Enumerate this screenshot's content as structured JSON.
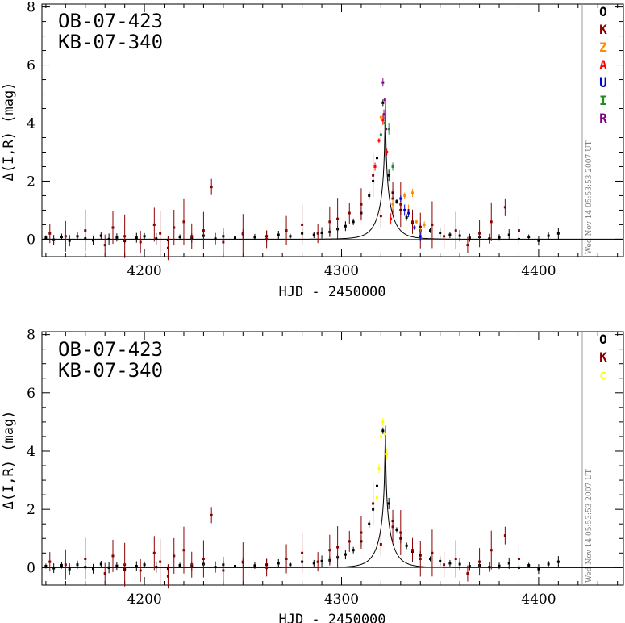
{
  "chart_data": [
    {
      "type": "scatter",
      "title": [
        "OB-07-423",
        "KB-07-340"
      ],
      "xlabel": "HJD - 2450000",
      "ylabel": "Δ(I,R) (mag)",
      "xlim": [
        4148,
        4443
      ],
      "ylim": [
        -0.6,
        8.1
      ],
      "xticks": [
        4200,
        4300,
        4400
      ],
      "yticks": [
        0,
        2,
        4,
        6,
        8
      ],
      "timestamp": "Wed Nov 14 05:53:53 2007 UT",
      "legend": [
        {
          "label": "O",
          "color": "#000000"
        },
        {
          "label": "K",
          "color": "#8b0000"
        },
        {
          "label": "Z",
          "color": "#ff8c00"
        },
        {
          "label": "A",
          "color": "#ff0000"
        },
        {
          "label": "U",
          "color": "#0000cd"
        },
        {
          "label": "I",
          "color": "#228b22"
        },
        {
          "label": "R",
          "color": "#800080"
        }
      ],
      "model": {
        "t0": 4322.2,
        "tau": 7.5,
        "u0": 0.009,
        "baseline": 0,
        "tmax": 4443
      },
      "series": [
        {
          "name": "O",
          "color": "#000000",
          "points": [
            [
              4150,
              0.05
            ],
            [
              4154,
              -0.02
            ],
            [
              4158,
              0.08
            ],
            [
              4162,
              -0.05
            ],
            [
              4166,
              0.1
            ],
            [
              4170,
              0.02
            ],
            [
              4174,
              -0.04
            ],
            [
              4178,
              0.12
            ],
            [
              4182,
              0.0
            ],
            [
              4186,
              0.06
            ],
            [
              4190,
              -0.06
            ],
            [
              4196,
              0.05
            ],
            [
              4200,
              0.1
            ],
            [
              4206,
              0.02
            ],
            [
              4212,
              -0.03
            ],
            [
              4218,
              0.08
            ],
            [
              4224,
              0.04
            ],
            [
              4230,
              0.12
            ],
            [
              4236,
              0.02
            ],
            [
              4240,
              0.1
            ],
            [
              4246,
              0.05
            ],
            [
              4250,
              0.18
            ],
            [
              4256,
              0.07
            ],
            [
              4262,
              0.1
            ],
            [
              4268,
              0.15
            ],
            [
              4274,
              0.1
            ],
            [
              4280,
              0.2
            ],
            [
              4286,
              0.15
            ],
            [
              4290,
              0.22
            ],
            [
              4294,
              0.25
            ],
            [
              4298,
              0.35
            ],
            [
              4302,
              0.45
            ],
            [
              4306,
              0.6
            ],
            [
              4310,
              0.9
            ],
            [
              4314,
              1.5
            ],
            [
              4316,
              2.0
            ],
            [
              4318,
              2.8
            ],
            [
              4321,
              4.7
            ],
            [
              4324,
              2.2
            ],
            [
              4326,
              1.6
            ],
            [
              4328,
              1.3
            ],
            [
              4330,
              1.0
            ],
            [
              4333,
              0.75
            ],
            [
              4336,
              0.55
            ],
            [
              4340,
              0.42
            ],
            [
              4345,
              0.3
            ],
            [
              4350,
              0.22
            ],
            [
              4355,
              0.15
            ],
            [
              4360,
              0.12
            ],
            [
              4365,
              0.05
            ],
            [
              4370,
              0.08
            ],
            [
              4375,
              0.02
            ],
            [
              4380,
              0.06
            ],
            [
              4385,
              0.15
            ],
            [
              4390,
              0.0
            ],
            [
              4395,
              0.08
            ],
            [
              4400,
              -0.05
            ],
            [
              4405,
              0.12
            ],
            [
              4410,
              0.2
            ]
          ]
        },
        {
          "name": "K",
          "color": "#8b0000",
          "points": [
            [
              4152,
              0.2
            ],
            [
              4160,
              0.1
            ],
            [
              4170,
              0.3
            ],
            [
              4180,
              -0.2
            ],
            [
              4184,
              0.4
            ],
            [
              4190,
              0.1
            ],
            [
              4198,
              -0.1
            ],
            [
              4205,
              0.5
            ],
            [
              4208,
              0.2
            ],
            [
              4212,
              -0.3
            ],
            [
              4215,
              0.4
            ],
            [
              4220,
              0.6
            ],
            [
              4224,
              0.1
            ],
            [
              4230,
              0.3
            ],
            [
              4234,
              1.8
            ],
            [
              4240,
              -0.1
            ],
            [
              4250,
              0.2
            ],
            [
              4262,
              0.0
            ],
            [
              4272,
              0.3
            ],
            [
              4280,
              0.5
            ],
            [
              4288,
              0.2
            ],
            [
              4294,
              0.6
            ],
            [
              4298,
              0.7
            ],
            [
              4304,
              0.9
            ],
            [
              4310,
              1.2
            ],
            [
              4316,
              2.2
            ],
            [
              4320,
              0.8
            ],
            [
              4326,
              1.4
            ],
            [
              4330,
              1.2
            ],
            [
              4336,
              0.6
            ],
            [
              4340,
              0.3
            ],
            [
              4346,
              0.5
            ],
            [
              4352,
              0.1
            ],
            [
              4358,
              0.3
            ],
            [
              4364,
              -0.2
            ],
            [
              4370,
              0.2
            ],
            [
              4376,
              0.6
            ],
            [
              4383,
              1.1
            ],
            [
              4390,
              0.3
            ]
          ]
        },
        {
          "name": "Z",
          "color": "#ff8c00",
          "points": [
            [
              4320,
              4.2
            ],
            [
              4326,
              1.2
            ],
            [
              4332,
              1.5
            ],
            [
              4334,
              1.0
            ],
            [
              4336,
              1.6
            ],
            [
              4338,
              0.6
            ],
            [
              4340,
              0.2
            ],
            [
              4342,
              0.5
            ]
          ]
        },
        {
          "name": "A",
          "color": "#ff0000",
          "points": [
            [
              4317,
              2.5
            ],
            [
              4319,
              3.4
            ],
            [
              4321,
              4.1
            ],
            [
              4323,
              3.0
            ],
            [
              4325,
              0.7
            ]
          ]
        },
        {
          "name": "U",
          "color": "#0000cd",
          "points": [
            [
              4330,
              1.4
            ],
            [
              4332,
              1.0
            ],
            [
              4334,
              0.9
            ],
            [
              4337,
              0.4
            ],
            [
              4340,
              0.1
            ]
          ]
        },
        {
          "name": "I",
          "color": "#228b22",
          "points": [
            [
              4320,
              3.6
            ],
            [
              4322,
              4.0
            ],
            [
              4324,
              3.8
            ],
            [
              4326,
              2.5
            ]
          ]
        },
        {
          "name": "R",
          "color": "#800080",
          "points": [
            [
              4321,
              5.4
            ],
            [
              4322,
              4.8
            ],
            [
              4321.5,
              4.3
            ],
            [
              4322.5,
              3.8
            ]
          ]
        }
      ]
    },
    {
      "type": "scatter",
      "title": [
        "OB-07-423",
        "KB-07-340"
      ],
      "xlabel": "HJD - 2450000",
      "ylabel": "Δ(I,R) (mag)",
      "xlim": [
        4148,
        4443
      ],
      "ylim": [
        -0.6,
        8.1
      ],
      "xticks": [
        4200,
        4300,
        4400
      ],
      "yticks": [
        0,
        2,
        4,
        6,
        8
      ],
      "timestamp": "Wed Nov 14 05:53:53 2007 UT",
      "legend": [
        {
          "label": "O",
          "color": "#000000"
        },
        {
          "label": "K",
          "color": "#8b0000"
        },
        {
          "label": "c",
          "color": "#ffff00"
        }
      ],
      "model": {
        "t0": 4322.2,
        "tau": 7.5,
        "u0": 0.009,
        "baseline": 0,
        "tmax": 4443
      },
      "series": [
        {
          "name": "O",
          "color": "#000000",
          "points": [
            [
              4150,
              0.05
            ],
            [
              4154,
              -0.02
            ],
            [
              4158,
              0.08
            ],
            [
              4162,
              -0.05
            ],
            [
              4166,
              0.1
            ],
            [
              4170,
              0.02
            ],
            [
              4174,
              -0.04
            ],
            [
              4178,
              0.12
            ],
            [
              4182,
              0.0
            ],
            [
              4186,
              0.06
            ],
            [
              4190,
              -0.06
            ],
            [
              4196,
              0.05
            ],
            [
              4200,
              0.1
            ],
            [
              4206,
              0.02
            ],
            [
              4212,
              -0.03
            ],
            [
              4218,
              0.08
            ],
            [
              4224,
              0.04
            ],
            [
              4230,
              0.12
            ],
            [
              4236,
              0.02
            ],
            [
              4240,
              0.1
            ],
            [
              4246,
              0.05
            ],
            [
              4250,
              0.18
            ],
            [
              4256,
              0.07
            ],
            [
              4262,
              0.1
            ],
            [
              4268,
              0.15
            ],
            [
              4274,
              0.1
            ],
            [
              4280,
              0.2
            ],
            [
              4286,
              0.15
            ],
            [
              4290,
              0.22
            ],
            [
              4294,
              0.25
            ],
            [
              4298,
              0.35
            ],
            [
              4302,
              0.45
            ],
            [
              4306,
              0.6
            ],
            [
              4310,
              0.9
            ],
            [
              4314,
              1.5
            ],
            [
              4316,
              2.0
            ],
            [
              4318,
              2.8
            ],
            [
              4321,
              4.7
            ],
            [
              4324,
              2.2
            ],
            [
              4326,
              1.6
            ],
            [
              4328,
              1.3
            ],
            [
              4330,
              1.0
            ],
            [
              4333,
              0.75
            ],
            [
              4336,
              0.55
            ],
            [
              4340,
              0.42
            ],
            [
              4345,
              0.3
            ],
            [
              4350,
              0.22
            ],
            [
              4355,
              0.15
            ],
            [
              4360,
              0.12
            ],
            [
              4365,
              0.05
            ],
            [
              4370,
              0.08
            ],
            [
              4375,
              0.02
            ],
            [
              4380,
              0.06
            ],
            [
              4385,
              0.15
            ],
            [
              4390,
              0.0
            ],
            [
              4395,
              0.08
            ],
            [
              4400,
              -0.05
            ],
            [
              4405,
              0.12
            ],
            [
              4410,
              0.2
            ]
          ]
        },
        {
          "name": "K",
          "color": "#8b0000",
          "points": [
            [
              4152,
              0.2
            ],
            [
              4160,
              0.1
            ],
            [
              4170,
              0.3
            ],
            [
              4180,
              -0.2
            ],
            [
              4184,
              0.4
            ],
            [
              4190,
              0.1
            ],
            [
              4198,
              -0.1
            ],
            [
              4205,
              0.5
            ],
            [
              4208,
              0.2
            ],
            [
              4212,
              -0.3
            ],
            [
              4215,
              0.4
            ],
            [
              4220,
              0.6
            ],
            [
              4224,
              0.1
            ],
            [
              4230,
              0.3
            ],
            [
              4234,
              1.8
            ],
            [
              4240,
              -0.1
            ],
            [
              4250,
              0.2
            ],
            [
              4262,
              0.0
            ],
            [
              4272,
              0.3
            ],
            [
              4280,
              0.5
            ],
            [
              4288,
              0.2
            ],
            [
              4294,
              0.6
            ],
            [
              4298,
              0.7
            ],
            [
              4304,
              0.9
            ],
            [
              4310,
              1.2
            ],
            [
              4316,
              2.2
            ],
            [
              4320,
              0.8
            ],
            [
              4326,
              1.4
            ],
            [
              4330,
              1.2
            ],
            [
              4336,
              0.6
            ],
            [
              4340,
              0.3
            ],
            [
              4346,
              0.5
            ],
            [
              4352,
              0.1
            ],
            [
              4358,
              0.3
            ],
            [
              4364,
              -0.2
            ],
            [
              4370,
              0.2
            ],
            [
              4376,
              0.6
            ],
            [
              4383,
              1.1
            ],
            [
              4390,
              0.3
            ]
          ]
        },
        {
          "name": "c",
          "color": "#ffff00",
          "points": [
            [
              4320,
              4.5
            ],
            [
              4321,
              5.0
            ],
            [
              4322,
              4.6
            ],
            [
              4319,
              3.4
            ],
            [
              4318,
              2.4
            ],
            [
              4323,
              3.9
            ]
          ]
        }
      ]
    }
  ]
}
